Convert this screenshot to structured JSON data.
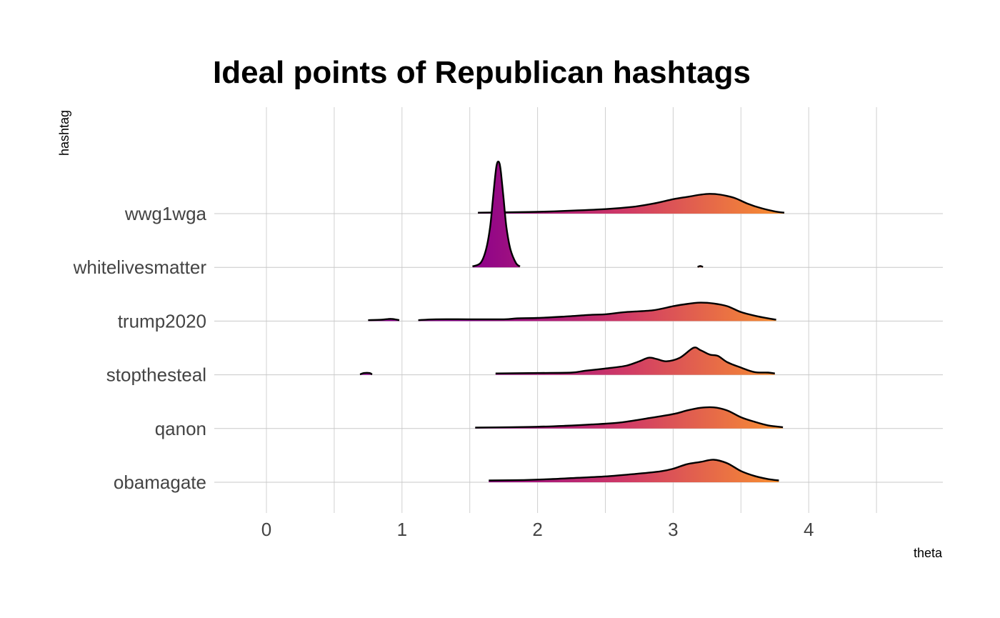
{
  "chart_data": {
    "type": "ridgeline",
    "title": "Ideal points of Republican hashtags",
    "xlabel": "theta",
    "ylabel": "hashtag",
    "xlim": [
      -0.4,
      5.0
    ],
    "x_ticks": [
      "0",
      "1",
      "2",
      "3",
      "4"
    ],
    "grid": true,
    "gradient": {
      "x_from": 1.5,
      "x_to": 3.8,
      "colors": [
        "#8b008b",
        "#d03a66",
        "#f89030"
      ]
    },
    "categories": [
      "wwg1wga",
      "whitelivesmatter",
      "trump2020",
      "stopthesteal",
      "qanon",
      "obamagate"
    ],
    "series": [
      {
        "category": "wwg1wga",
        "segments": [
          [
            [
              1.56,
              0.02
            ],
            [
              1.8,
              0.03
            ],
            [
              2.0,
              0.04
            ],
            [
              2.2,
              0.06
            ],
            [
              2.5,
              0.1
            ],
            [
              2.7,
              0.15
            ],
            [
              2.85,
              0.22
            ],
            [
              3.0,
              0.32
            ],
            [
              3.1,
              0.37
            ],
            [
              3.2,
              0.42
            ],
            [
              3.27,
              0.44
            ],
            [
              3.35,
              0.42
            ],
            [
              3.45,
              0.35
            ],
            [
              3.55,
              0.22
            ],
            [
              3.65,
              0.12
            ],
            [
              3.75,
              0.05
            ],
            [
              3.82,
              0.02
            ]
          ]
        ]
      },
      {
        "category": "whitelivesmatter",
        "segments": [
          [
            [
              1.52,
              0.02
            ],
            [
              1.58,
              0.1
            ],
            [
              1.62,
              0.4
            ],
            [
              1.65,
              0.9
            ],
            [
              1.67,
              1.5
            ],
            [
              1.69,
              2.1
            ],
            [
              1.7,
              2.3
            ],
            [
              1.71,
              2.35
            ],
            [
              1.72,
              2.3
            ],
            [
              1.73,
              2.1
            ],
            [
              1.75,
              1.5
            ],
            [
              1.77,
              0.9
            ],
            [
              1.8,
              0.4
            ],
            [
              1.84,
              0.1
            ],
            [
              1.87,
              0.02
            ]
          ],
          [
            [
              3.18,
              0.01
            ],
            [
              3.2,
              0.03
            ],
            [
              3.22,
              0.01
            ]
          ]
        ]
      },
      {
        "category": "trump2020",
        "segments": [
          [
            [
              0.75,
              0.02
            ],
            [
              0.85,
              0.03
            ],
            [
              0.92,
              0.05
            ],
            [
              0.98,
              0.02
            ]
          ],
          [
            [
              1.12,
              0.02
            ],
            [
              1.25,
              0.04
            ],
            [
              1.5,
              0.04
            ],
            [
              1.75,
              0.04
            ],
            [
              1.85,
              0.06
            ],
            [
              2.0,
              0.07
            ],
            [
              2.2,
              0.1
            ],
            [
              2.4,
              0.14
            ],
            [
              2.5,
              0.15
            ],
            [
              2.65,
              0.2
            ],
            [
              2.85,
              0.24
            ],
            [
              3.0,
              0.33
            ],
            [
              3.1,
              0.38
            ],
            [
              3.2,
              0.41
            ],
            [
              3.3,
              0.39
            ],
            [
              3.4,
              0.33
            ],
            [
              3.5,
              0.2
            ],
            [
              3.6,
              0.12
            ],
            [
              3.7,
              0.06
            ],
            [
              3.76,
              0.03
            ]
          ]
        ]
      },
      {
        "category": "stopthesteal",
        "segments": [
          [
            [
              0.69,
              0.01
            ],
            [
              0.72,
              0.04
            ],
            [
              0.76,
              0.04
            ],
            [
              0.78,
              0.01
            ]
          ],
          [
            [
              1.69,
              0.03
            ],
            [
              2.0,
              0.04
            ],
            [
              2.25,
              0.05
            ],
            [
              2.35,
              0.09
            ],
            [
              2.5,
              0.14
            ],
            [
              2.65,
              0.2
            ],
            [
              2.75,
              0.3
            ],
            [
              2.82,
              0.38
            ],
            [
              2.88,
              0.35
            ],
            [
              2.95,
              0.3
            ],
            [
              3.05,
              0.38
            ],
            [
              3.15,
              0.6
            ],
            [
              3.2,
              0.55
            ],
            [
              3.27,
              0.45
            ],
            [
              3.33,
              0.42
            ],
            [
              3.4,
              0.28
            ],
            [
              3.5,
              0.16
            ],
            [
              3.6,
              0.06
            ],
            [
              3.7,
              0.05
            ],
            [
              3.75,
              0.03
            ]
          ]
        ]
      },
      {
        "category": "qanon",
        "segments": [
          [
            [
              1.54,
              0.02
            ],
            [
              1.8,
              0.03
            ],
            [
              2.0,
              0.04
            ],
            [
              2.2,
              0.06
            ],
            [
              2.4,
              0.09
            ],
            [
              2.6,
              0.13
            ],
            [
              2.8,
              0.22
            ],
            [
              3.0,
              0.32
            ],
            [
              3.1,
              0.4
            ],
            [
              3.2,
              0.46
            ],
            [
              3.3,
              0.47
            ],
            [
              3.4,
              0.4
            ],
            [
              3.5,
              0.25
            ],
            [
              3.6,
              0.15
            ],
            [
              3.7,
              0.07
            ],
            [
              3.81,
              0.03
            ]
          ]
        ]
      },
      {
        "category": "obamagate",
        "segments": [
          [
            [
              1.64,
              0.04
            ],
            [
              1.9,
              0.05
            ],
            [
              2.1,
              0.07
            ],
            [
              2.3,
              0.1
            ],
            [
              2.5,
              0.13
            ],
            [
              2.7,
              0.18
            ],
            [
              2.9,
              0.24
            ],
            [
              3.0,
              0.3
            ],
            [
              3.1,
              0.4
            ],
            [
              3.2,
              0.45
            ],
            [
              3.3,
              0.5
            ],
            [
              3.4,
              0.42
            ],
            [
              3.5,
              0.25
            ],
            [
              3.6,
              0.14
            ],
            [
              3.7,
              0.07
            ],
            [
              3.78,
              0.04
            ]
          ]
        ]
      }
    ]
  }
}
